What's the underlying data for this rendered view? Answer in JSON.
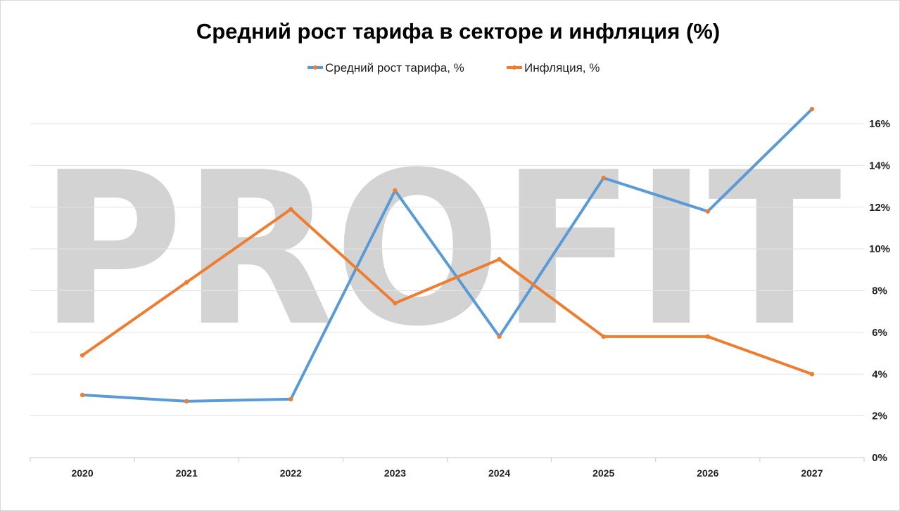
{
  "chart_data": {
    "type": "line",
    "title": "Средний рост тарифа в секторе и инфляция (%)",
    "categories": [
      "2020",
      "2021",
      "2022",
      "2023",
      "2024",
      "2025",
      "2026",
      "2027"
    ],
    "series": [
      {
        "name": "Средний рост тарифа, %",
        "color": "#5b9bd5",
        "values": [
          3.0,
          2.7,
          2.8,
          12.8,
          5.8,
          13.4,
          11.8,
          16.7
        ]
      },
      {
        "name": "Инфляция, %",
        "color": "#ed7d31",
        "values": [
          4.9,
          8.4,
          11.9,
          7.4,
          9.5,
          5.8,
          5.8,
          4.0
        ]
      }
    ],
    "y_ticks": [
      "0%",
      "2%",
      "4%",
      "6%",
      "8%",
      "10%",
      "12%",
      "14%",
      "16%"
    ],
    "ylim": [
      0,
      16
    ],
    "y_axis_side": "right",
    "grid": true,
    "legend_position": "top",
    "xlabel": "",
    "ylabel": "",
    "watermark": "PROFIT"
  }
}
